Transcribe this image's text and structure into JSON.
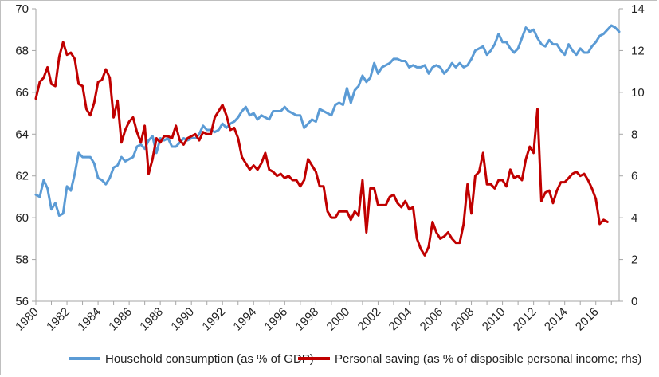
{
  "chart_data": {
    "type": "line",
    "x_ticks": [
      "1980",
      "1982",
      "1984",
      "1986",
      "1988",
      "1990",
      "1992",
      "1994",
      "1996",
      "1998",
      "2000",
      "2002",
      "2004",
      "2006",
      "2008",
      "2010",
      "2012",
      "2014",
      "2016"
    ],
    "y_left_ticks": [
      "56",
      "58",
      "60",
      "62",
      "64",
      "66",
      "68",
      "70"
    ],
    "y_right_ticks": [
      "0",
      "2",
      "4",
      "6",
      "8",
      "10",
      "12",
      "14"
    ],
    "ylim_left": [
      56,
      70
    ],
    "ylim_right": [
      0,
      14
    ],
    "xlim": [
      1980.0,
      2017.5
    ],
    "legend_position": "bottom",
    "grid": false,
    "series": [
      {
        "name": "Household consumption (as % of GDP)",
        "axis": "left",
        "color": "#5b9bd5",
        "points": [
          [
            1980.0,
            61.1
          ],
          [
            1980.25,
            61.0
          ],
          [
            1980.5,
            61.8
          ],
          [
            1980.75,
            61.4
          ],
          [
            1981.0,
            60.4
          ],
          [
            1981.25,
            60.7
          ],
          [
            1981.5,
            60.1
          ],
          [
            1981.75,
            60.2
          ],
          [
            1982.0,
            61.5
          ],
          [
            1982.25,
            61.3
          ],
          [
            1982.5,
            62.1
          ],
          [
            1982.75,
            63.1
          ],
          [
            1983.0,
            62.9
          ],
          [
            1983.25,
            62.9
          ],
          [
            1983.5,
            62.9
          ],
          [
            1983.75,
            62.6
          ],
          [
            1984.0,
            61.9
          ],
          [
            1984.25,
            61.8
          ],
          [
            1984.5,
            61.6
          ],
          [
            1984.75,
            61.9
          ],
          [
            1985.0,
            62.4
          ],
          [
            1985.25,
            62.5
          ],
          [
            1985.5,
            62.9
          ],
          [
            1985.75,
            62.7
          ],
          [
            1986.0,
            62.8
          ],
          [
            1986.25,
            62.9
          ],
          [
            1986.5,
            63.4
          ],
          [
            1986.75,
            63.5
          ],
          [
            1987.0,
            63.3
          ],
          [
            1987.25,
            63.7
          ],
          [
            1987.5,
            63.9
          ],
          [
            1987.75,
            63.1
          ],
          [
            1988.0,
            63.8
          ],
          [
            1988.25,
            63.7
          ],
          [
            1988.5,
            63.8
          ],
          [
            1988.75,
            63.4
          ],
          [
            1989.0,
            63.4
          ],
          [
            1989.25,
            63.6
          ],
          [
            1989.5,
            63.8
          ],
          [
            1989.75,
            63.7
          ],
          [
            1990.0,
            63.8
          ],
          [
            1990.25,
            63.8
          ],
          [
            1990.5,
            64.0
          ],
          [
            1990.75,
            64.4
          ],
          [
            1991.0,
            64.2
          ],
          [
            1991.25,
            64.2
          ],
          [
            1991.5,
            64.1
          ],
          [
            1991.75,
            64.2
          ],
          [
            1992.0,
            64.5
          ],
          [
            1992.25,
            64.3
          ],
          [
            1992.5,
            64.5
          ],
          [
            1992.75,
            64.6
          ],
          [
            1993.0,
            64.8
          ],
          [
            1993.25,
            65.1
          ],
          [
            1993.5,
            65.3
          ],
          [
            1993.75,
            64.9
          ],
          [
            1994.0,
            65.0
          ],
          [
            1994.25,
            64.7
          ],
          [
            1994.5,
            64.9
          ],
          [
            1994.75,
            64.8
          ],
          [
            1995.0,
            64.7
          ],
          [
            1995.25,
            65.1
          ],
          [
            1995.5,
            65.1
          ],
          [
            1995.75,
            65.1
          ],
          [
            1996.0,
            65.3
          ],
          [
            1996.25,
            65.1
          ],
          [
            1996.5,
            65.0
          ],
          [
            1996.75,
            64.9
          ],
          [
            1997.0,
            64.9
          ],
          [
            1997.25,
            64.3
          ],
          [
            1997.5,
            64.5
          ],
          [
            1997.75,
            64.7
          ],
          [
            1998.0,
            64.6
          ],
          [
            1998.25,
            65.2
          ],
          [
            1998.5,
            65.1
          ],
          [
            1998.75,
            65.0
          ],
          [
            1999.0,
            64.9
          ],
          [
            1999.25,
            65.4
          ],
          [
            1999.5,
            65.5
          ],
          [
            1999.75,
            65.4
          ],
          [
            2000.0,
            66.2
          ],
          [
            2000.25,
            65.5
          ],
          [
            2000.5,
            66.1
          ],
          [
            2000.75,
            66.3
          ],
          [
            2001.0,
            66.8
          ],
          [
            2001.25,
            66.5
          ],
          [
            2001.5,
            66.7
          ],
          [
            2001.75,
            67.4
          ],
          [
            2002.0,
            66.9
          ],
          [
            2002.25,
            67.2
          ],
          [
            2002.5,
            67.3
          ],
          [
            2002.75,
            67.4
          ],
          [
            2003.0,
            67.6
          ],
          [
            2003.25,
            67.6
          ],
          [
            2003.5,
            67.5
          ],
          [
            2003.75,
            67.5
          ],
          [
            2004.0,
            67.2
          ],
          [
            2004.25,
            67.3
          ],
          [
            2004.5,
            67.2
          ],
          [
            2004.75,
            67.2
          ],
          [
            2005.0,
            67.3
          ],
          [
            2005.25,
            66.9
          ],
          [
            2005.5,
            67.2
          ],
          [
            2005.75,
            67.3
          ],
          [
            2006.0,
            67.2
          ],
          [
            2006.25,
            66.9
          ],
          [
            2006.5,
            67.1
          ],
          [
            2006.75,
            67.4
          ],
          [
            2007.0,
            67.2
          ],
          [
            2007.25,
            67.4
          ],
          [
            2007.5,
            67.2
          ],
          [
            2007.75,
            67.3
          ],
          [
            2008.0,
            67.6
          ],
          [
            2008.25,
            68.0
          ],
          [
            2008.5,
            68.1
          ],
          [
            2008.75,
            68.2
          ],
          [
            2009.0,
            67.8
          ],
          [
            2009.25,
            68.0
          ],
          [
            2009.5,
            68.3
          ],
          [
            2009.75,
            68.8
          ],
          [
            2010.0,
            68.4
          ],
          [
            2010.25,
            68.4
          ],
          [
            2010.5,
            68.1
          ],
          [
            2010.75,
            67.9
          ],
          [
            2011.0,
            68.1
          ],
          [
            2011.25,
            68.6
          ],
          [
            2011.5,
            69.1
          ],
          [
            2011.75,
            68.9
          ],
          [
            2012.0,
            69.0
          ],
          [
            2012.25,
            68.6
          ],
          [
            2012.5,
            68.3
          ],
          [
            2012.75,
            68.2
          ],
          [
            2013.0,
            68.5
          ],
          [
            2013.25,
            68.3
          ],
          [
            2013.5,
            68.3
          ],
          [
            2013.75,
            68.0
          ],
          [
            2014.0,
            67.8
          ],
          [
            2014.25,
            68.3
          ],
          [
            2014.5,
            68.0
          ],
          [
            2014.75,
            67.8
          ],
          [
            2015.0,
            68.1
          ],
          [
            2015.25,
            67.9
          ],
          [
            2015.5,
            67.9
          ],
          [
            2015.75,
            68.2
          ],
          [
            2016.0,
            68.4
          ],
          [
            2016.25,
            68.7
          ],
          [
            2016.5,
            68.8
          ],
          [
            2016.75,
            69.0
          ],
          [
            2017.0,
            69.2
          ],
          [
            2017.25,
            69.1
          ],
          [
            2017.5,
            68.9
          ]
        ]
      },
      {
        "name": "Personal saving (as % of disposible personal income; rhs)",
        "axis": "right",
        "color": "#c00000",
        "points": [
          [
            1980.0,
            9.7
          ],
          [
            1980.25,
            10.5
          ],
          [
            1980.5,
            10.7
          ],
          [
            1980.75,
            11.2
          ],
          [
            1981.0,
            10.4
          ],
          [
            1981.25,
            10.3
          ],
          [
            1981.5,
            11.7
          ],
          [
            1981.75,
            12.4
          ],
          [
            1982.0,
            11.8
          ],
          [
            1982.25,
            11.9
          ],
          [
            1982.5,
            11.6
          ],
          [
            1982.75,
            10.4
          ],
          [
            1983.0,
            10.3
          ],
          [
            1983.25,
            9.2
          ],
          [
            1983.5,
            8.9
          ],
          [
            1983.75,
            9.5
          ],
          [
            1984.0,
            10.5
          ],
          [
            1984.25,
            10.6
          ],
          [
            1984.5,
            11.1
          ],
          [
            1984.75,
            10.7
          ],
          [
            1985.0,
            8.8
          ],
          [
            1985.25,
            9.6
          ],
          [
            1985.5,
            7.6
          ],
          [
            1985.75,
            8.2
          ],
          [
            1986.0,
            8.6
          ],
          [
            1986.25,
            8.8
          ],
          [
            1986.5,
            8.1
          ],
          [
            1986.75,
            7.6
          ],
          [
            1987.0,
            8.4
          ],
          [
            1987.25,
            6.1
          ],
          [
            1987.5,
            6.8
          ],
          [
            1987.75,
            7.8
          ],
          [
            1988.0,
            7.6
          ],
          [
            1988.25,
            7.9
          ],
          [
            1988.5,
            7.9
          ],
          [
            1988.75,
            7.8
          ],
          [
            1989.0,
            8.4
          ],
          [
            1989.25,
            7.7
          ],
          [
            1989.5,
            7.5
          ],
          [
            1989.75,
            7.8
          ],
          [
            1990.0,
            7.9
          ],
          [
            1990.25,
            8.0
          ],
          [
            1990.5,
            7.7
          ],
          [
            1990.75,
            8.1
          ],
          [
            1991.0,
            8.0
          ],
          [
            1991.25,
            8.0
          ],
          [
            1991.5,
            8.8
          ],
          [
            1991.75,
            9.1
          ],
          [
            1992.0,
            9.4
          ],
          [
            1992.25,
            8.9
          ],
          [
            1992.5,
            8.2
          ],
          [
            1992.75,
            8.3
          ],
          [
            1993.0,
            7.8
          ],
          [
            1993.25,
            6.9
          ],
          [
            1993.5,
            6.6
          ],
          [
            1993.75,
            6.3
          ],
          [
            1994.0,
            6.5
          ],
          [
            1994.25,
            6.3
          ],
          [
            1994.5,
            6.6
          ],
          [
            1994.75,
            7.1
          ],
          [
            1995.0,
            6.3
          ],
          [
            1995.25,
            6.2
          ],
          [
            1995.5,
            6.0
          ],
          [
            1995.75,
            6.1
          ],
          [
            1996.0,
            5.9
          ],
          [
            1996.25,
            6.0
          ],
          [
            1996.5,
            5.8
          ],
          [
            1996.75,
            5.8
          ],
          [
            1997.0,
            5.5
          ],
          [
            1997.25,
            5.8
          ],
          [
            1997.5,
            6.8
          ],
          [
            1997.75,
            6.5
          ],
          [
            1998.0,
            6.2
          ],
          [
            1998.25,
            5.5
          ],
          [
            1998.5,
            5.5
          ],
          [
            1998.75,
            4.3
          ],
          [
            1999.0,
            4.0
          ],
          [
            1999.25,
            4.0
          ],
          [
            1999.5,
            4.3
          ],
          [
            1999.75,
            4.3
          ],
          [
            2000.0,
            4.3
          ],
          [
            2000.25,
            3.9
          ],
          [
            2000.5,
            4.3
          ],
          [
            2000.75,
            4.1
          ],
          [
            2001.0,
            5.8
          ],
          [
            2001.25,
            3.3
          ],
          [
            2001.5,
            5.4
          ],
          [
            2001.75,
            5.4
          ],
          [
            2002.0,
            4.6
          ],
          [
            2002.25,
            4.6
          ],
          [
            2002.5,
            4.6
          ],
          [
            2002.75,
            5.0
          ],
          [
            2003.0,
            5.1
          ],
          [
            2003.25,
            4.7
          ],
          [
            2003.5,
            4.5
          ],
          [
            2003.75,
            4.8
          ],
          [
            2004.0,
            4.4
          ],
          [
            2004.25,
            4.5
          ],
          [
            2004.5,
            3.0
          ],
          [
            2004.75,
            2.5
          ],
          [
            2005.0,
            2.2
          ],
          [
            2005.25,
            2.6
          ],
          [
            2005.5,
            3.8
          ],
          [
            2005.75,
            3.3
          ],
          [
            2006.0,
            3.0
          ],
          [
            2006.25,
            3.1
          ],
          [
            2006.5,
            3.3
          ],
          [
            2006.75,
            3.0
          ],
          [
            2007.0,
            2.8
          ],
          [
            2007.25,
            2.8
          ],
          [
            2007.5,
            3.7
          ],
          [
            2007.75,
            5.6
          ],
          [
            2008.0,
            4.2
          ],
          [
            2008.25,
            6.0
          ],
          [
            2008.5,
            6.2
          ],
          [
            2008.75,
            7.1
          ],
          [
            2009.0,
            5.6
          ],
          [
            2009.25,
            5.6
          ],
          [
            2009.5,
            5.4
          ],
          [
            2009.75,
            5.8
          ],
          [
            2010.0,
            5.8
          ],
          [
            2010.25,
            5.5
          ],
          [
            2010.5,
            6.3
          ],
          [
            2010.75,
            5.9
          ],
          [
            2011.0,
            6.0
          ],
          [
            2011.25,
            5.8
          ],
          [
            2011.5,
            6.8
          ],
          [
            2011.75,
            7.4
          ],
          [
            2012.0,
            7.1
          ],
          [
            2012.25,
            9.2
          ],
          [
            2012.5,
            4.8
          ],
          [
            2012.75,
            5.2
          ],
          [
            2013.0,
            5.3
          ],
          [
            2013.25,
            4.7
          ],
          [
            2013.5,
            5.3
          ],
          [
            2013.75,
            5.7
          ],
          [
            2014.0,
            5.7
          ],
          [
            2014.25,
            5.9
          ],
          [
            2014.5,
            6.1
          ],
          [
            2014.75,
            6.2
          ],
          [
            2015.0,
            6.0
          ],
          [
            2015.25,
            6.1
          ],
          [
            2015.5,
            5.8
          ],
          [
            2015.75,
            5.4
          ],
          [
            2016.0,
            4.9
          ],
          [
            2016.25,
            3.7
          ],
          [
            2016.5,
            3.9
          ],
          [
            2016.75,
            3.8
          ]
        ]
      }
    ]
  }
}
